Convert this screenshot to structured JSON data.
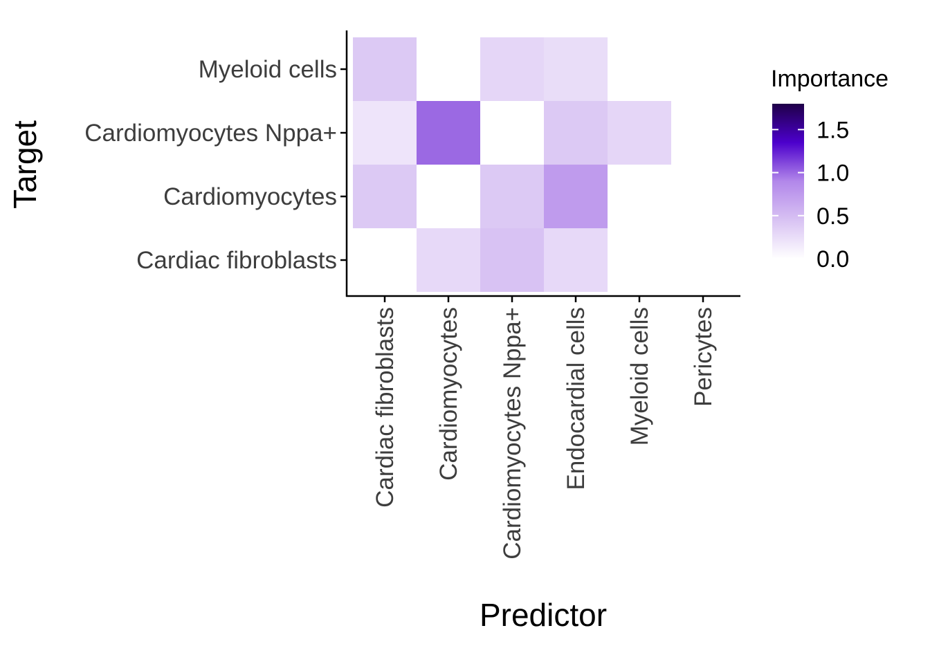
{
  "chart_data": {
    "type": "heatmap",
    "xlabel": "Predictor",
    "ylabel": "Target",
    "x_categories": [
      "Cardiac fibroblasts",
      "Cardiomyocytes",
      "Cardiomyocytes Nppa+",
      "Endocardial cells",
      "Myeloid cells",
      "Pericytes"
    ],
    "y_categories": [
      "Cardiac fibroblasts",
      "Cardiomyocytes",
      "Cardiomyocytes Nppa+",
      "Myeloid cells"
    ],
    "values": [
      [
        null,
        0.28,
        0.45,
        0.28,
        null,
        null
      ],
      [
        0.4,
        null,
        0.4,
        0.75,
        null,
        null
      ],
      [
        0.2,
        1.0,
        null,
        0.4,
        0.3,
        null
      ],
      [
        0.4,
        null,
        0.3,
        0.25,
        null,
        null
      ]
    ],
    "legend": {
      "title": "Importance",
      "ticks": [
        0.0,
        0.5,
        1.0,
        1.5
      ],
      "tick_labels": [
        "0.0",
        "0.5",
        "1.0",
        "1.5"
      ],
      "range": [
        0,
        1.8
      ],
      "colors": [
        "#ffffff",
        "#d8c2f3",
        "#b287ea",
        "#4c00cc",
        "#1f0048"
      ]
    },
    "grid": false
  }
}
